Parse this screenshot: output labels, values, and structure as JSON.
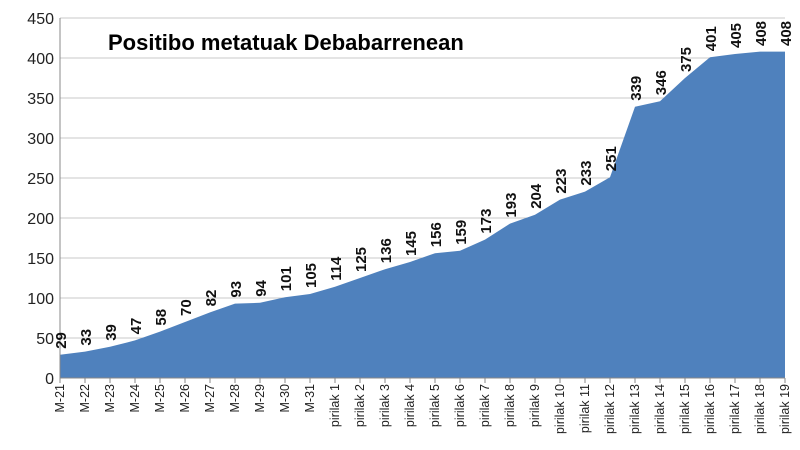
{
  "chart_data": {
    "type": "area",
    "title": "Positibo metatuak Debabarrenean",
    "xlabel": "",
    "ylabel": "",
    "ylim": [
      0,
      450
    ],
    "yticks": [
      0,
      50,
      100,
      150,
      200,
      250,
      300,
      350,
      400,
      450
    ],
    "grid": true,
    "legend": "none",
    "fill_color": "#4f81bd",
    "categories": [
      "M-21",
      "M-22",
      "M-23",
      "M-24",
      "M-25",
      "M-26",
      "M-27",
      "M-28",
      "M-29",
      "M-30",
      "M-31",
      "pirilak 1",
      "pirilak 2",
      "pirilak 3",
      "pirilak 4",
      "pirilak 5",
      "pirilak 6",
      "pirilak 7",
      "pirilak 8",
      "pirilak 9",
      "pirilak 10",
      "pirilak 11",
      "pirilak 12",
      "pirilak 13",
      "pirilak 14",
      "pirilak 15",
      "pirilak 16",
      "pirilak 17",
      "pirilak 18",
      "pirilak 19"
    ],
    "values": [
      29,
      33,
      39,
      47,
      58,
      70,
      82,
      93,
      94,
      101,
      105,
      114,
      125,
      136,
      145,
      156,
      159,
      173,
      193,
      204,
      223,
      233,
      251,
      339,
      346,
      375,
      401,
      405,
      408,
      408
    ]
  }
}
